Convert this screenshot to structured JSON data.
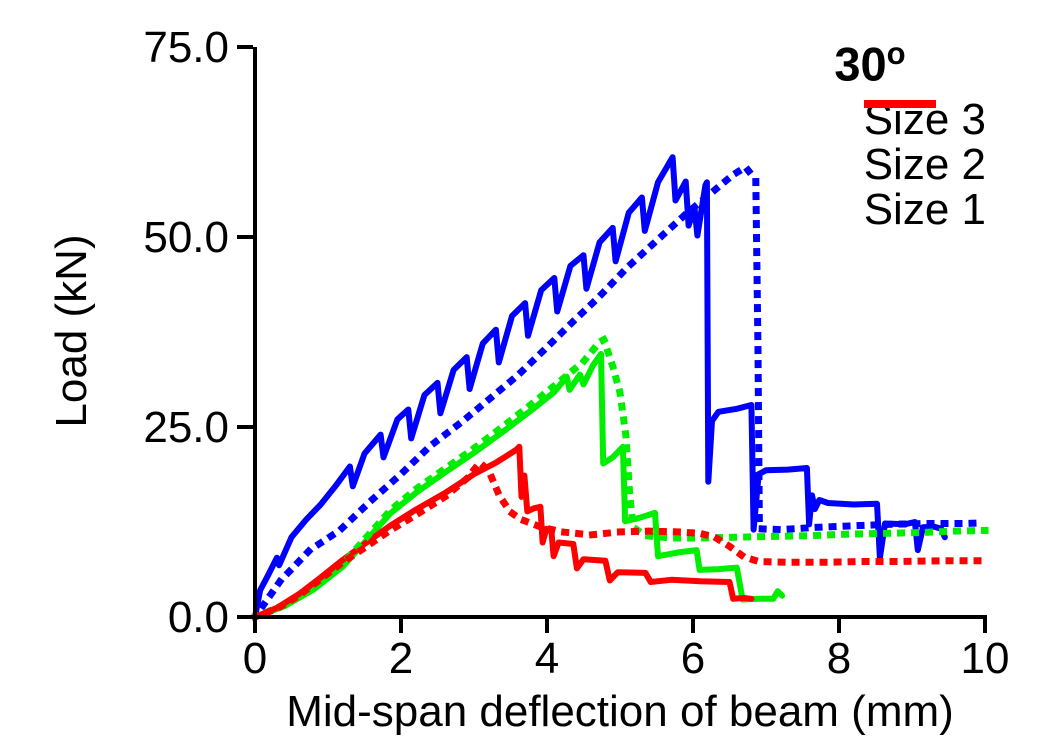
{
  "title": {
    "text": "30",
    "sup": "o"
  },
  "legend": {
    "items": [
      {
        "label": "Size 3",
        "color": "#0000ff"
      },
      {
        "label": "Size 2",
        "color": "#00ee00"
      },
      {
        "label": "Size 1",
        "color": "#ff0000"
      }
    ]
  },
  "axes": {
    "x": {
      "label": "Mid-span deflection of beam (mm)",
      "ticks": [
        {
          "label": "0",
          "value": 0
        },
        {
          "label": "2",
          "value": 2
        },
        {
          "label": "4",
          "value": 4
        },
        {
          "label": "6",
          "value": 6
        },
        {
          "label": "8",
          "value": 8
        },
        {
          "label": "10",
          "value": 10
        }
      ]
    },
    "y": {
      "label": "Load (kN)",
      "ticks": [
        {
          "label": "0.0",
          "value": 0
        },
        {
          "label": "25.0",
          "value": 25
        },
        {
          "label": "50.0",
          "value": 50
        },
        {
          "label": "75.0",
          "value": 75
        }
      ]
    }
  },
  "chart_data": {
    "type": "line",
    "title": "30°",
    "xlabel": "Mid-span deflection of beam (mm)",
    "ylabel": "Load (kN)",
    "xlim": [
      0,
      10
    ],
    "ylim": [
      0,
      75
    ],
    "grid": false,
    "legend_position": "top-right",
    "series": [
      {
        "id": "size-3-solid",
        "name": "Size 3",
        "style": "solid",
        "color": "#0000ff",
        "points": [
          [
            0,
            0
          ],
          [
            0.07,
            3.5
          ],
          [
            0.18,
            5.5
          ],
          [
            0.3,
            7.8
          ],
          [
            0.33,
            6.8
          ],
          [
            0.5,
            10.5
          ],
          [
            0.7,
            12.8
          ],
          [
            0.9,
            14.8
          ],
          [
            1.1,
            17.2
          ],
          [
            1.3,
            19.8
          ],
          [
            1.34,
            17.2
          ],
          [
            1.5,
            21.5
          ],
          [
            1.72,
            24.0
          ],
          [
            1.76,
            21.0
          ],
          [
            1.95,
            26.0
          ],
          [
            2.1,
            27.3
          ],
          [
            2.14,
            23.5
          ],
          [
            2.32,
            29.2
          ],
          [
            2.5,
            30.8
          ],
          [
            2.54,
            26.8
          ],
          [
            2.72,
            32.5
          ],
          [
            2.9,
            34.2
          ],
          [
            2.94,
            30.0
          ],
          [
            3.12,
            36.0
          ],
          [
            3.3,
            37.8
          ],
          [
            3.34,
            33.5
          ],
          [
            3.52,
            39.6
          ],
          [
            3.7,
            41.3
          ],
          [
            3.74,
            37.0
          ],
          [
            3.92,
            43.0
          ],
          [
            4.1,
            44.6
          ],
          [
            4.14,
            40.2
          ],
          [
            4.32,
            46.2
          ],
          [
            4.5,
            47.6
          ],
          [
            4.54,
            43.2
          ],
          [
            4.72,
            49.3
          ],
          [
            4.9,
            51.2
          ],
          [
            4.94,
            46.8
          ],
          [
            5.12,
            53.2
          ],
          [
            5.3,
            55.2
          ],
          [
            5.34,
            50.8
          ],
          [
            5.52,
            57.2
          ],
          [
            5.72,
            60.5
          ],
          [
            5.76,
            54.8
          ],
          [
            5.9,
            57.3
          ],
          [
            5.94,
            51.5
          ],
          [
            6.02,
            53.8
          ],
          [
            6.06,
            50.2
          ],
          [
            6.17,
            56.8
          ],
          [
            6.19,
            57.2
          ],
          [
            6.21,
            17.8
          ],
          [
            6.26,
            25.8
          ],
          [
            6.35,
            27.0
          ],
          [
            6.6,
            27.4
          ],
          [
            6.8,
            27.9
          ],
          [
            6.83,
            11.5
          ],
          [
            6.9,
            18.8
          ],
          [
            7.0,
            19.3
          ],
          [
            7.3,
            19.4
          ],
          [
            7.56,
            19.6
          ],
          [
            7.59,
            12.2
          ],
          [
            7.63,
            16.0
          ],
          [
            7.67,
            14.2
          ],
          [
            7.73,
            15.4
          ],
          [
            7.85,
            15.0
          ],
          [
            8.2,
            14.8
          ],
          [
            8.52,
            14.9
          ],
          [
            8.56,
            7.8
          ],
          [
            8.63,
            12.3
          ],
          [
            8.9,
            12.2
          ],
          [
            9.04,
            12.5
          ],
          [
            9.08,
            8.8
          ],
          [
            9.15,
            11.8
          ],
          [
            9.3,
            11.9
          ],
          [
            9.4,
            11.6
          ],
          [
            9.45,
            10.5
          ]
        ]
      },
      {
        "id": "size-3-dotted",
        "name": "Size 3 (dotted)",
        "style": "dotted",
        "color": "#0000ff",
        "points": [
          [
            0,
            0
          ],
          [
            0.35,
            4.8
          ],
          [
            0.75,
            8.8
          ],
          [
            1.16,
            11.4
          ],
          [
            1.6,
            15.4
          ],
          [
            2.0,
            18.8
          ],
          [
            2.4,
            22.5
          ],
          [
            2.85,
            25.8
          ],
          [
            3.25,
            29.0
          ],
          [
            3.6,
            31.8
          ],
          [
            4.0,
            35.5
          ],
          [
            4.35,
            38.8
          ],
          [
            4.7,
            42.0
          ],
          [
            5.1,
            46.0
          ],
          [
            5.5,
            49.5
          ],
          [
            5.9,
            53.0
          ],
          [
            6.25,
            55.8
          ],
          [
            6.55,
            58.2
          ],
          [
            6.72,
            59.2
          ],
          [
            6.86,
            57.5
          ],
          [
            6.89,
            35.0
          ],
          [
            6.91,
            11.6
          ],
          [
            7.2,
            11.5
          ],
          [
            7.7,
            11.8
          ],
          [
            8.2,
            12.0
          ],
          [
            8.7,
            12.2
          ],
          [
            9.2,
            12.3
          ],
          [
            9.7,
            12.3
          ],
          [
            10.0,
            12.4
          ]
        ]
      },
      {
        "id": "size-2-solid",
        "name": "Size 2",
        "style": "solid",
        "color": "#00ee00",
        "points": [
          [
            0,
            0
          ],
          [
            0.4,
            1.4
          ],
          [
            0.8,
            3.6
          ],
          [
            1.2,
            6.6
          ],
          [
            1.5,
            9.8
          ],
          [
            1.85,
            13.6
          ],
          [
            2.2,
            16.3
          ],
          [
            2.6,
            19.0
          ],
          [
            3.0,
            21.6
          ],
          [
            3.4,
            24.4
          ],
          [
            3.8,
            27.3
          ],
          [
            4.1,
            29.6
          ],
          [
            4.27,
            31.6
          ],
          [
            4.31,
            29.9
          ],
          [
            4.45,
            31.9
          ],
          [
            4.5,
            30.6
          ],
          [
            4.63,
            33.1
          ],
          [
            4.74,
            34.6
          ],
          [
            4.77,
            20.2
          ],
          [
            4.9,
            21.0
          ],
          [
            5.04,
            22.4
          ],
          [
            5.07,
            12.6
          ],
          [
            5.25,
            13.0
          ],
          [
            5.48,
            13.7
          ],
          [
            5.52,
            8.0
          ],
          [
            5.8,
            8.5
          ],
          [
            6.05,
            8.8
          ],
          [
            6.09,
            6.2
          ],
          [
            6.35,
            6.3
          ],
          [
            6.6,
            6.5
          ],
          [
            6.68,
            2.3
          ],
          [
            6.9,
            2.4
          ],
          [
            7.1,
            2.4
          ],
          [
            7.16,
            3.4
          ],
          [
            7.22,
            2.8
          ]
        ]
      },
      {
        "id": "size-2-dotted",
        "name": "Size 2 (dotted)",
        "style": "dotted",
        "color": "#00ee00",
        "points": [
          [
            0,
            0
          ],
          [
            0.4,
            1.6
          ],
          [
            0.8,
            4.0
          ],
          [
            1.2,
            7.0
          ],
          [
            1.5,
            10.2
          ],
          [
            1.85,
            14.0
          ],
          [
            2.2,
            16.8
          ],
          [
            2.6,
            19.5
          ],
          [
            3.0,
            22.2
          ],
          [
            3.4,
            25.1
          ],
          [
            3.8,
            28.1
          ],
          [
            4.2,
            31.2
          ],
          [
            4.5,
            33.6
          ],
          [
            4.72,
            36.2
          ],
          [
            4.78,
            36.5
          ],
          [
            4.9,
            33.0
          ],
          [
            5.0,
            29.5
          ],
          [
            5.08,
            24.0
          ],
          [
            5.13,
            16.5
          ],
          [
            5.18,
            11.8
          ],
          [
            5.35,
            10.7
          ],
          [
            5.7,
            10.4
          ],
          [
            6.1,
            10.4
          ],
          [
            6.6,
            10.5
          ],
          [
            7.1,
            10.6
          ],
          [
            7.6,
            10.7
          ],
          [
            8.1,
            10.9
          ],
          [
            8.6,
            11.0
          ],
          [
            9.1,
            11.1
          ],
          [
            9.6,
            11.3
          ],
          [
            10.0,
            11.4
          ]
        ]
      },
      {
        "id": "size-1-solid",
        "name": "Size 1",
        "style": "solid",
        "color": "#ff0000",
        "points": [
          [
            0,
            0
          ],
          [
            0.3,
            1.2
          ],
          [
            0.6,
            3.0
          ],
          [
            0.9,
            5.2
          ],
          [
            1.2,
            7.5
          ],
          [
            1.5,
            9.6
          ],
          [
            1.85,
            12.0
          ],
          [
            2.2,
            14.1
          ],
          [
            2.6,
            16.3
          ],
          [
            3.0,
            18.8
          ],
          [
            3.3,
            20.3
          ],
          [
            3.58,
            22.0
          ],
          [
            3.62,
            22.4
          ],
          [
            3.65,
            15.8
          ],
          [
            3.69,
            18.6
          ],
          [
            3.73,
            13.9
          ],
          [
            3.82,
            14.3
          ],
          [
            3.91,
            14.5
          ],
          [
            3.94,
            9.8
          ],
          [
            3.99,
            11.6
          ],
          [
            4.06,
            11.3
          ],
          [
            4.09,
            8.0
          ],
          [
            4.16,
            9.8
          ],
          [
            4.36,
            9.6
          ],
          [
            4.41,
            6.4
          ],
          [
            4.5,
            7.6
          ],
          [
            4.8,
            7.4
          ],
          [
            4.86,
            4.8
          ],
          [
            4.97,
            5.9
          ],
          [
            5.35,
            5.8
          ],
          [
            5.42,
            4.6
          ],
          [
            5.7,
            4.9
          ],
          [
            6.1,
            4.7
          ],
          [
            6.5,
            4.6
          ],
          [
            6.55,
            2.4
          ],
          [
            6.7,
            2.5
          ],
          [
            6.8,
            2.4
          ]
        ]
      },
      {
        "id": "size-1-dotted",
        "name": "Size 1 (dotted)",
        "style": "dotted",
        "color": "#ff0000",
        "points": [
          [
            0,
            0
          ],
          [
            0.3,
            1.1
          ],
          [
            0.6,
            2.8
          ],
          [
            0.9,
            5.0
          ],
          [
            1.2,
            7.2
          ],
          [
            1.5,
            9.1
          ],
          [
            1.85,
            11.4
          ],
          [
            2.2,
            13.4
          ],
          [
            2.6,
            15.8
          ],
          [
            2.9,
            18.2
          ],
          [
            3.08,
            20.3
          ],
          [
            3.2,
            19.3
          ],
          [
            3.35,
            15.9
          ],
          [
            3.5,
            13.8
          ],
          [
            3.65,
            12.8
          ],
          [
            3.9,
            11.9
          ],
          [
            4.2,
            11.2
          ],
          [
            4.6,
            10.8
          ],
          [
            5.0,
            11.2
          ],
          [
            5.4,
            11.3
          ],
          [
            5.8,
            11.2
          ],
          [
            6.1,
            11.0
          ],
          [
            6.3,
            10.5
          ],
          [
            6.5,
            9.3
          ],
          [
            6.7,
            7.9
          ],
          [
            6.9,
            7.3
          ],
          [
            7.3,
            7.2
          ],
          [
            7.8,
            7.2
          ],
          [
            8.3,
            7.3
          ],
          [
            8.8,
            7.3
          ],
          [
            9.4,
            7.4
          ],
          [
            10.0,
            7.4
          ]
        ]
      }
    ]
  }
}
